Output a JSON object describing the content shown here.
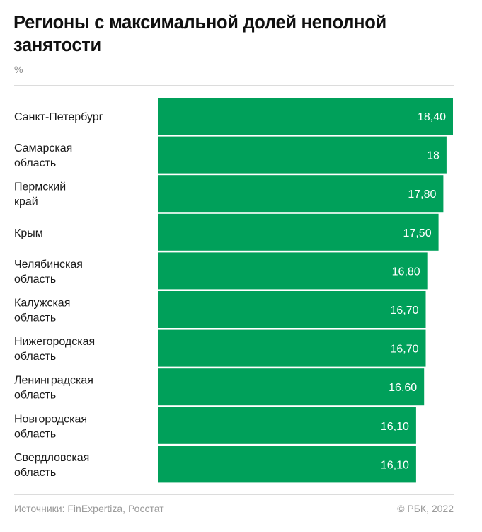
{
  "header": {
    "title": "Регионы с максимальной долей неполной занятости",
    "unit": "%"
  },
  "footer": {
    "source": "Источники: FinExpertiza, Росстат",
    "copyright": "© РБК, 2022"
  },
  "colors": {
    "bar": "#00a05a",
    "rule": "#dcdcdc"
  },
  "chart_data": {
    "type": "bar",
    "orientation": "horizontal",
    "title": "Регионы с максимальной долей неполной занятости",
    "ylabel": "%",
    "categories": [
      [
        "Санкт-Петербург"
      ],
      [
        "Самарская",
        "область"
      ],
      [
        "Пермский",
        "край"
      ],
      [
        "Крым"
      ],
      [
        "Челябинская",
        "область"
      ],
      [
        "Калужская",
        "область"
      ],
      [
        "Нижегородская",
        "область"
      ],
      [
        "Ленинградская",
        "область"
      ],
      [
        "Новгородская",
        "область"
      ],
      [
        "Свердловская",
        "область"
      ]
    ],
    "values": [
      18.4,
      18,
      17.8,
      17.5,
      16.8,
      16.7,
      16.7,
      16.6,
      16.1,
      16.1
    ],
    "value_labels": [
      "18,40",
      "18",
      "17,80",
      "17,50",
      "16,80",
      "16,70",
      "16,70",
      "16,60",
      "16,10",
      "16,10"
    ],
    "grid": false,
    "legend": "none"
  }
}
